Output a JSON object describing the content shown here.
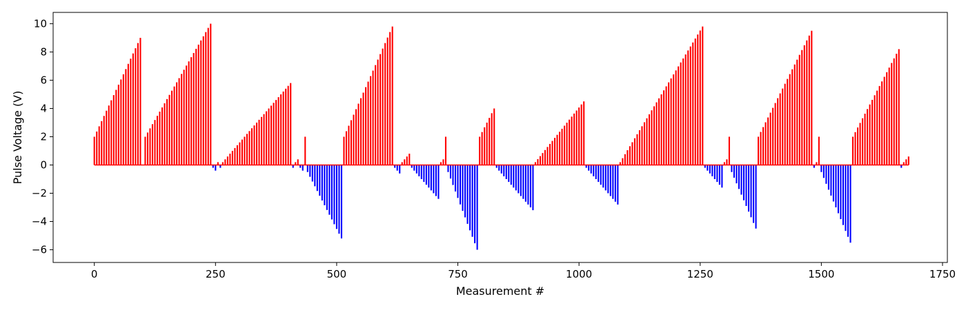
{
  "chart_data": {
    "type": "bar",
    "xlabel": "Measurement #",
    "ylabel": "Pulse Voltage (V)",
    "xlim": [
      -85,
      1760
    ],
    "ylim": [
      -6.9,
      10.8
    ],
    "x_ticks": [
      0,
      250,
      500,
      750,
      1000,
      1250,
      1500,
      1750
    ],
    "y_ticks": [
      -6,
      -4,
      -2,
      0,
      2,
      4,
      6,
      8,
      10
    ],
    "x_tick_labels": [
      "0",
      "250",
      "500",
      "750",
      "1000",
      "1250",
      "1500",
      "1750"
    ],
    "y_tick_labels": [
      "−6",
      "−4",
      "−2",
      "0",
      "2",
      "4",
      "6",
      "8",
      "10"
    ],
    "grid": false,
    "positive_color": "#ff0000",
    "negative_color": "#0000ff",
    "segments": [
      {
        "start": 0,
        "end": 95,
        "v0": 2.0,
        "v1": 9.0
      },
      {
        "start": 105,
        "end": 240,
        "v0": 2.0,
        "v1": 10.0
      },
      {
        "start": 245,
        "end": 250,
        "v0": -0.2,
        "v1": -0.4
      },
      {
        "start": 255,
        "end": 255,
        "v0": 0.2,
        "v1": 0.2
      },
      {
        "start": 260,
        "end": 260,
        "v0": -0.2,
        "v1": -0.2
      },
      {
        "start": 265,
        "end": 405,
        "v0": 0.2,
        "v1": 5.8
      },
      {
        "start": 410,
        "end": 410,
        "v0": -0.2,
        "v1": -0.2
      },
      {
        "start": 415,
        "end": 420,
        "v0": 0.2,
        "v1": 0.4
      },
      {
        "start": 425,
        "end": 430,
        "v0": -0.2,
        "v1": -0.4
      },
      {
        "start": 435,
        "end": 435,
        "v0": 2.0,
        "v1": 2.0
      },
      {
        "start": 440,
        "end": 510,
        "v0": -0.5,
        "v1": -5.2
      },
      {
        "start": 515,
        "end": 615,
        "v0": 2.0,
        "v1": 9.8
      },
      {
        "start": 620,
        "end": 630,
        "v0": -0.2,
        "v1": -0.6
      },
      {
        "start": 635,
        "end": 650,
        "v0": 0.2,
        "v1": 0.8
      },
      {
        "start": 655,
        "end": 710,
        "v0": -0.2,
        "v1": -2.4
      },
      {
        "start": 715,
        "end": 720,
        "v0": 0.2,
        "v1": 0.4
      },
      {
        "start": 725,
        "end": 725,
        "v0": 2.0,
        "v1": 2.0
      },
      {
        "start": 730,
        "end": 790,
        "v0": -0.5,
        "v1": -6.0
      },
      {
        "start": 795,
        "end": 825,
        "v0": 2.0,
        "v1": 4.0
      },
      {
        "start": 830,
        "end": 905,
        "v0": -0.2,
        "v1": -3.2
      },
      {
        "start": 910,
        "end": 1010,
        "v0": 0.2,
        "v1": 4.5
      },
      {
        "start": 1015,
        "end": 1080,
        "v0": -0.2,
        "v1": -2.8
      },
      {
        "start": 1085,
        "end": 1255,
        "v0": 0.2,
        "v1": 9.8
      },
      {
        "start": 1260,
        "end": 1295,
        "v0": -0.2,
        "v1": -1.6
      },
      {
        "start": 1300,
        "end": 1305,
        "v0": 0.2,
        "v1": 0.4
      },
      {
        "start": 1310,
        "end": 1310,
        "v0": 2.0,
        "v1": 2.0
      },
      {
        "start": 1315,
        "end": 1365,
        "v0": -0.5,
        "v1": -4.5
      },
      {
        "start": 1370,
        "end": 1480,
        "v0": 2.0,
        "v1": 9.5
      },
      {
        "start": 1485,
        "end": 1485,
        "v0": -0.2,
        "v1": -0.2
      },
      {
        "start": 1490,
        "end": 1490,
        "v0": 0.2,
        "v1": 0.2
      },
      {
        "start": 1495,
        "end": 1495,
        "v0": 2.0,
        "v1": 2.0
      },
      {
        "start": 1500,
        "end": 1560,
        "v0": -0.5,
        "v1": -5.5
      },
      {
        "start": 1565,
        "end": 1660,
        "v0": 2.0,
        "v1": 8.2
      },
      {
        "start": 1665,
        "end": 1665,
        "v0": -0.2,
        "v1": -0.2
      },
      {
        "start": 1670,
        "end": 1680,
        "v0": 0.2,
        "v1": 0.6
      }
    ],
    "x_step": 5
  }
}
